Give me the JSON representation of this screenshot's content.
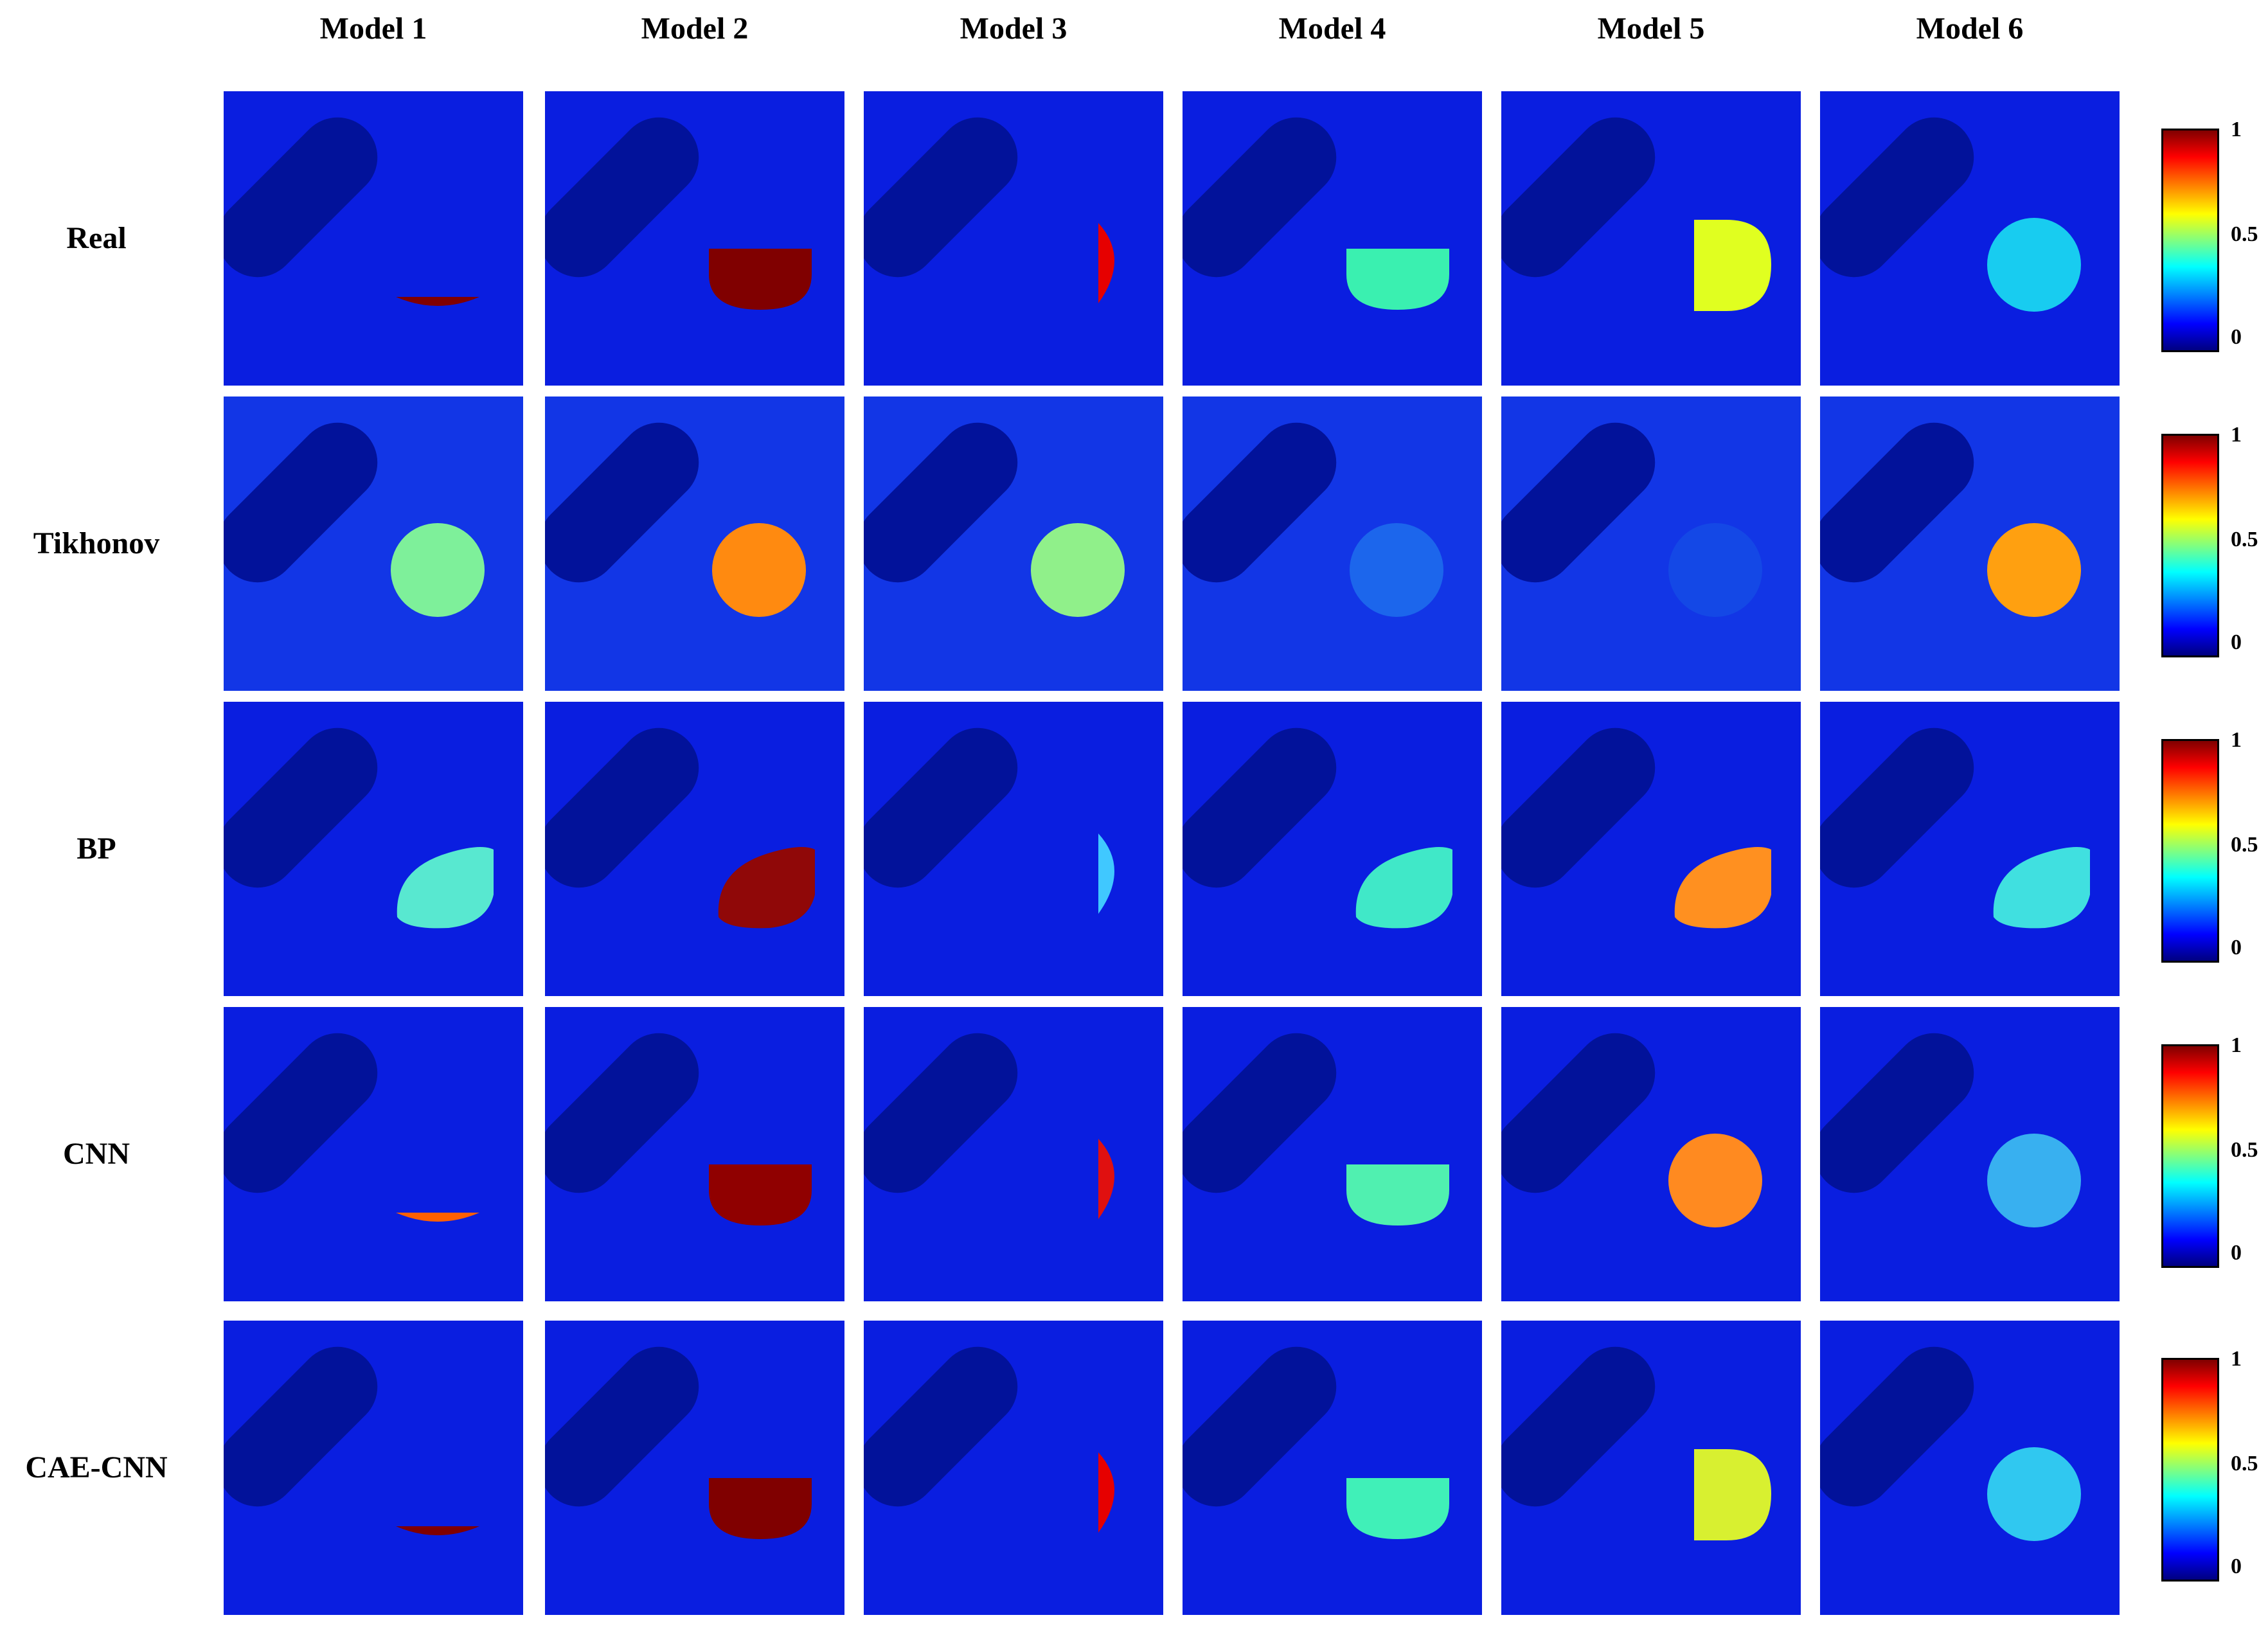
{
  "columns": [
    "Model 1",
    "Model 2",
    "Model 3",
    "Model 4",
    "Model 5",
    "Model 6"
  ],
  "rows": [
    {
      "label": "Real",
      "cells": [
        {
          "bg": "#0a1ee0",
          "blob": "cap-small",
          "color": "#800000"
        },
        {
          "bg": "#0a1ee0",
          "blob": "bowl",
          "color": "#800000"
        },
        {
          "bg": "#0a1ee0",
          "blob": "half-right-small",
          "color": "#e60000"
        },
        {
          "bg": "#0a1ee0",
          "blob": "bowl",
          "color": "#3af0b0"
        },
        {
          "bg": "#0a1ee0",
          "blob": "half-right",
          "color": "#e0ff20"
        },
        {
          "bg": "#0a1ee0",
          "blob": "circle",
          "color": "#18ccf0"
        }
      ]
    },
    {
      "label": "Tikhonov",
      "cells": [
        {
          "bg": "#1236e6",
          "blob": "circle",
          "color": "#7ef09a"
        },
        {
          "bg": "#1236e6",
          "blob": "circle",
          "color": "#ff8a10"
        },
        {
          "bg": "#1236e6",
          "blob": "circle",
          "color": "#90f08a"
        },
        {
          "bg": "#1236e6",
          "blob": "circle",
          "color": "#1c66ec"
        },
        {
          "bg": "#1236e6",
          "blob": "circle",
          "color": "#1448e6"
        },
        {
          "bg": "#1236e6",
          "blob": "circle",
          "color": "#ffa010"
        }
      ]
    },
    {
      "label": "BP",
      "cells": [
        {
          "bg": "#0a1ee0",
          "blob": "tilt",
          "color": "#58e8d0"
        },
        {
          "bg": "#0a1ee0",
          "blob": "tilt",
          "color": "#900808"
        },
        {
          "bg": "#0a1ee0",
          "blob": "half-right-small",
          "color": "#40c8ff"
        },
        {
          "bg": "#0a1ee0",
          "blob": "tilt",
          "color": "#40e8c8"
        },
        {
          "bg": "#0a1ee0",
          "blob": "tilt",
          "color": "#ff9020"
        },
        {
          "bg": "#0a1ee0",
          "blob": "tilt",
          "color": "#40e0e0"
        }
      ]
    },
    {
      "label": "CNN",
      "cells": [
        {
          "bg": "#0a1ee0",
          "blob": "cap-small",
          "color": "#ff6000"
        },
        {
          "bg": "#0a1ee0",
          "blob": "bowl",
          "color": "#900000"
        },
        {
          "bg": "#0a1ee0",
          "blob": "half-right-small",
          "color": "#e01010"
        },
        {
          "bg": "#0a1ee0",
          "blob": "bowl",
          "color": "#50f0b0"
        },
        {
          "bg": "#0a1ee0",
          "blob": "circle",
          "color": "#ff8a20"
        },
        {
          "bg": "#0a1ee0",
          "blob": "circle",
          "color": "#38b0f0"
        }
      ]
    },
    {
      "label": "CAE-CNN",
      "cells": [
        {
          "bg": "#0a1ee0",
          "blob": "cap-small",
          "color": "#800000"
        },
        {
          "bg": "#0a1ee0",
          "blob": "bowl",
          "color": "#800000"
        },
        {
          "bg": "#0a1ee0",
          "blob": "half-right-small",
          "color": "#e60000"
        },
        {
          "bg": "#0a1ee0",
          "blob": "bowl",
          "color": "#40f0b8"
        },
        {
          "bg": "#0a1ee0",
          "blob": "half-right",
          "color": "#d8f030"
        },
        {
          "bg": "#0a1ee0",
          "blob": "circle",
          "color": "#30c8f0"
        }
      ]
    }
  ],
  "colorbar": {
    "ticks": [
      "1",
      "0.5",
      "0"
    ],
    "colormap": "jet"
  },
  "inclusion_color": "#02129a"
}
